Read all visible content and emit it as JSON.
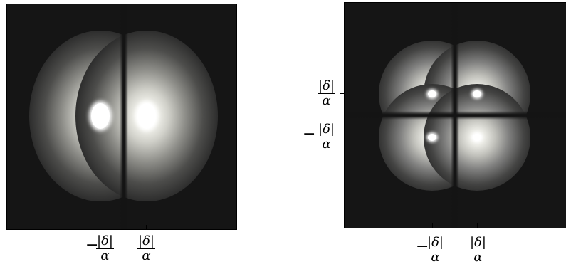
{
  "left_plot": {
    "x_ticks": [
      {
        "sign": "−",
        "numerator": "|δ|",
        "denominator": "α"
      },
      {
        "sign": "",
        "numerator": "|δ|",
        "denominator": "α"
      }
    ]
  },
  "right_plot": {
    "x_ticks": [
      {
        "sign": "−",
        "numerator": "|δ|",
        "denominator": "α"
      },
      {
        "sign": "",
        "numerator": "|δ|",
        "denominator": "α"
      }
    ],
    "y_ticks": [
      {
        "sign": "",
        "numerator": "|δ|",
        "denominator": "α"
      },
      {
        "sign": "−",
        "numerator": "|δ|",
        "denominator": "α"
      }
    ]
  },
  "colors": {
    "background": "#151515",
    "peak": "#ffffff",
    "frame": "#000000"
  }
}
